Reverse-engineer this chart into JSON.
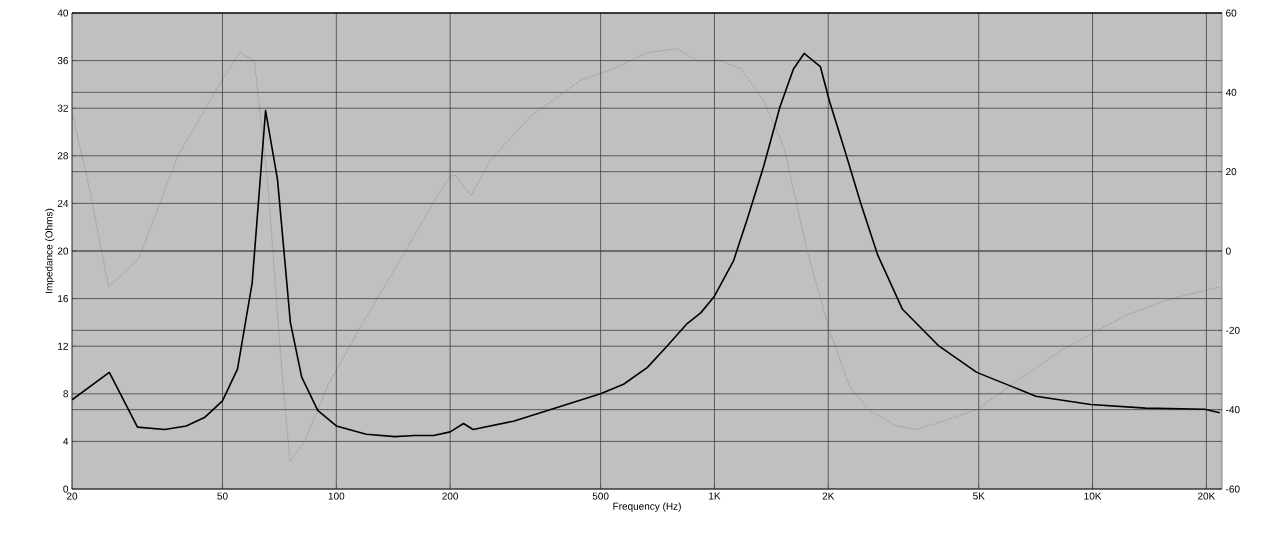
{
  "chart_data": {
    "type": "line",
    "xlabel": "Frequency (Hz)",
    "ylabel": "Impedance (Ohms)",
    "log": "x",
    "grid": true,
    "xlim": [
      20,
      22000
    ],
    "ylim": [
      0,
      40
    ],
    "y2lim": [
      -60,
      60
    ],
    "xticks": [
      20,
      50,
      100,
      200,
      500,
      {
        "value": 1000,
        "label": "1K"
      },
      {
        "value": 2000,
        "label": "2K"
      },
      {
        "value": 5000,
        "label": "5K"
      },
      {
        "value": 10000,
        "label": "10K"
      },
      {
        "value": 20000,
        "label": "20K"
      }
    ],
    "yticks": [
      0,
      4,
      8,
      12,
      16,
      20,
      24,
      28,
      32,
      36,
      40
    ],
    "y2ticks": [
      -60,
      -40,
      -20,
      0,
      20,
      40,
      60
    ],
    "series": [
      {
        "color": "#000000",
        "line_style": "solid",
        "x": [
          20,
          25.1,
          29.8,
          35.2,
          40.1,
          44.8,
          50,
          54.8,
          59.9,
          65,
          69.9,
          75.6,
          81,
          89.3,
          100,
          120,
          143,
          161,
          181,
          200,
          217,
          230,
          294,
          362,
          500,
          575,
          664,
          749,
          847,
          920,
          1000,
          1124,
          1222,
          1349,
          1490,
          1618,
          1727,
          1906,
          2014,
          2209,
          2443,
          2700,
          3143,
          3929,
          4940,
          7080,
          9890,
          13800,
          19800,
          21700
        ],
        "values": [
          7.5,
          9.8,
          5.2,
          5.0,
          5.3,
          6.0,
          7.4,
          10.1,
          17.3,
          31.8,
          26,
          14,
          9.4,
          6.6,
          5.3,
          4.6,
          4.4,
          4.5,
          4.5,
          4.8,
          5.5,
          5.0,
          5.7,
          6.6,
          8.0,
          8.8,
          10.2,
          12.0,
          13.9,
          14.8,
          16.2,
          19.2,
          22.7,
          27.1,
          32.1,
          35.3,
          36.6,
          35.5,
          32.6,
          28.5,
          23.9,
          19.7,
          15.1,
          12.0,
          9.8,
          7.8,
          7.1,
          6.8,
          6.7,
          6.4
        ]
      },
      {
        "color": "#808080",
        "line_style": "dotted",
        "axis": "y2",
        "x": [
          20,
          22.1,
          25,
          30,
          38.1,
          49.8,
          55.6,
          60.7,
          65.9,
          71.6,
          75.4,
          82.4,
          94.9,
          116,
          142,
          180,
          200,
          207,
          227,
          256,
          327,
          442,
          543,
          664,
          795,
          899,
          1036,
          1172,
          1349,
          1528,
          1759,
          2014,
          2275,
          2561,
          3017,
          3415,
          4000,
          4940,
          6250,
          8280,
          9890,
          12400,
          16200,
          21700
        ],
        "values": [
          35,
          17,
          -9,
          -2,
          24,
          43,
          50,
          48,
          17,
          -29,
          -53,
          -48,
          -34,
          -19,
          -5,
          12,
          19,
          19,
          14,
          23,
          34,
          43,
          46,
          50,
          51,
          48,
          48,
          46,
          38,
          26,
          0,
          -20,
          -34,
          -40,
          -44,
          -45,
          -43,
          -40,
          -33,
          -25,
          -21,
          -16,
          -12,
          -9
        ]
      }
    ]
  }
}
